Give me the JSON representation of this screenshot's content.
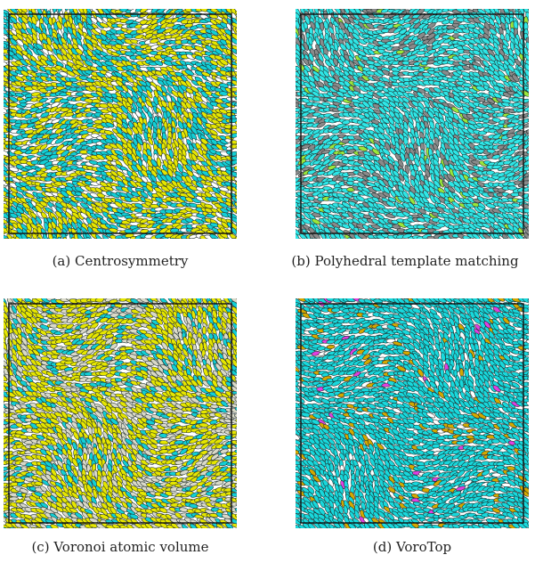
{
  "panels": [
    {
      "id": "a",
      "caption": "(a) Centrosymmetry",
      "palette": [
        {
          "color": "#e6e600",
          "weight": 0.48
        },
        {
          "color": "#12cfd6",
          "weight": 0.44
        },
        {
          "color": "#ffffff",
          "weight": 0.08
        }
      ]
    },
    {
      "id": "b",
      "caption": "(b) Polyhedral template matching",
      "palette": [
        {
          "color": "#2ee6e6",
          "weight": 0.78
        },
        {
          "color": "#8a8a8a",
          "weight": 0.19
        },
        {
          "color": "#9ae63a",
          "weight": 0.03
        }
      ]
    },
    {
      "id": "c",
      "caption": "(c) Voronoi atomic volume",
      "palette": [
        {
          "color": "#e6e600",
          "weight": 0.55
        },
        {
          "color": "#d9d9c8",
          "weight": 0.25
        },
        {
          "color": "#12cfd6",
          "weight": 0.2
        }
      ]
    },
    {
      "id": "d",
      "caption": "(d) VoroTop",
      "palette": [
        {
          "color": "#18d8dc",
          "weight": 0.9
        },
        {
          "color": "#d4a800",
          "weight": 0.06
        },
        {
          "color": "#ffffff",
          "weight": 0.025
        },
        {
          "color": "#e040e0",
          "weight": 0.015
        }
      ]
    }
  ]
}
